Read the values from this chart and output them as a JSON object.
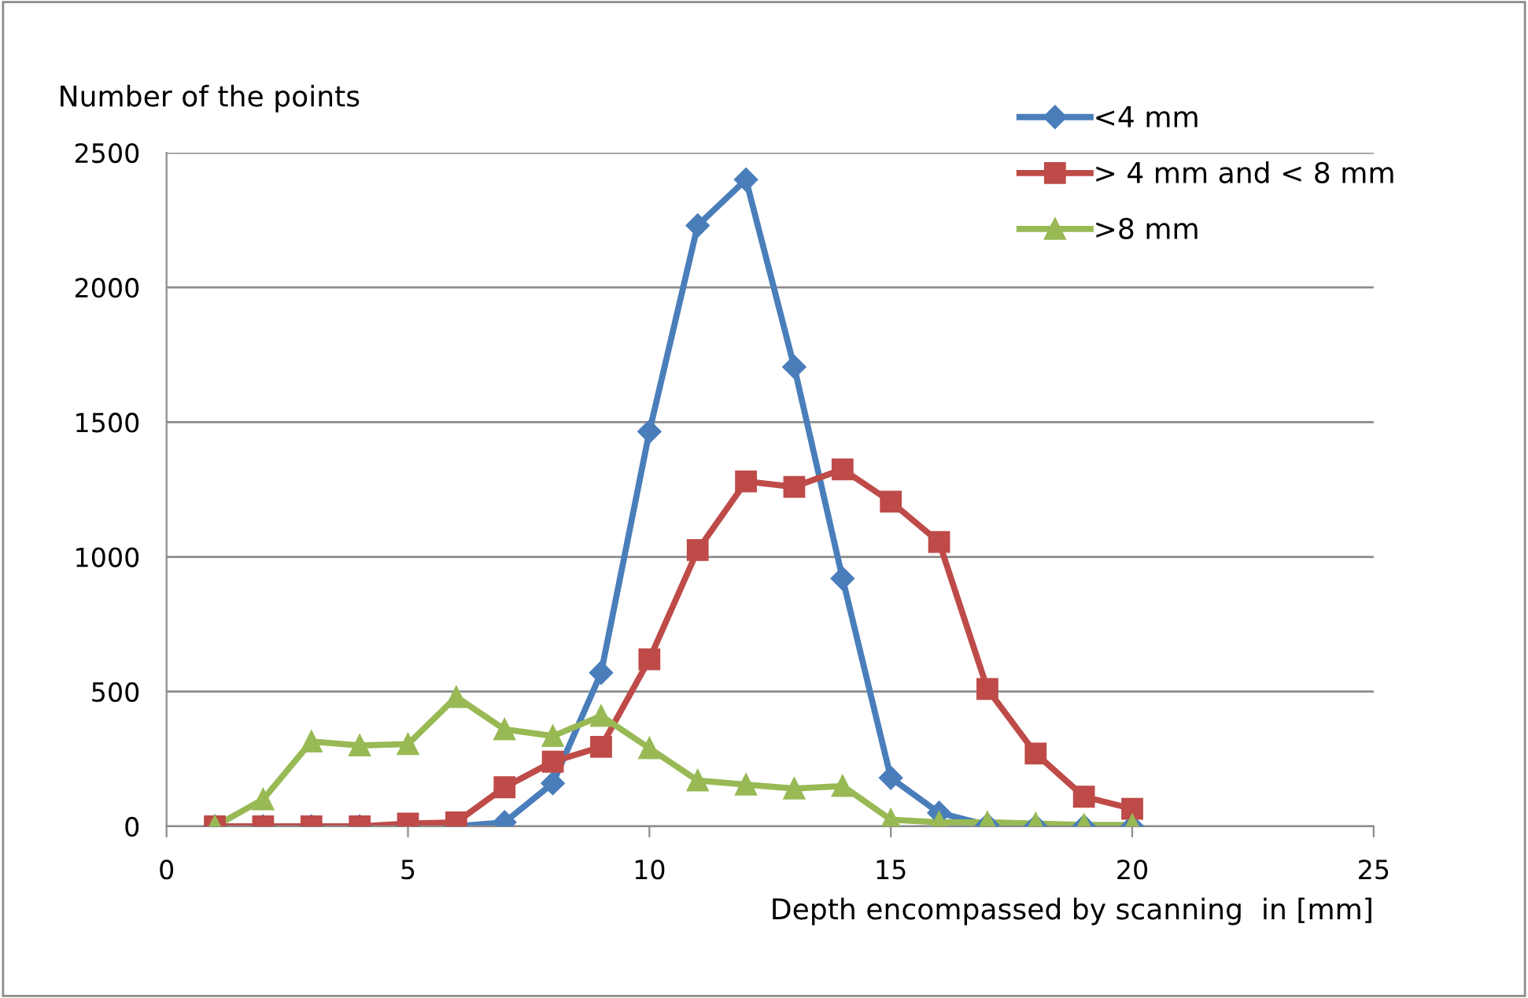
{
  "chart_data": {
    "type": "line",
    "xlabel": "Depth encompassed by scanning  in [mm]",
    "ylabel": "Number of the points",
    "x": [
      1,
      2,
      3,
      4,
      5,
      6,
      7,
      8,
      9,
      10,
      11,
      12,
      13,
      14,
      15,
      16,
      17,
      18,
      19,
      20
    ],
    "series": [
      {
        "name": "<4 mm",
        "color": "#4a7ebb",
        "marker": "diamond",
        "values": [
          0,
          0,
          0,
          0,
          0,
          0,
          15,
          160,
          570,
          1465,
          2230,
          2400,
          1705,
          920,
          180,
          50,
          5,
          0,
          0,
          0
        ]
      },
      {
        "name": "> 4 mm and < 8 mm",
        "color": "#be4b48",
        "marker": "square",
        "values": [
          0,
          0,
          0,
          0,
          10,
          15,
          145,
          240,
          295,
          620,
          1025,
          1280,
          1260,
          1325,
          1205,
          1055,
          510,
          270,
          110,
          65
        ]
      },
      {
        "name": ">8 mm",
        "color": "#98b954",
        "marker": "triangle",
        "values": [
          0,
          100,
          315,
          300,
          305,
          480,
          360,
          335,
          410,
          290,
          170,
          155,
          140,
          150,
          25,
          15,
          15,
          10,
          5,
          5
        ]
      }
    ],
    "xlim": [
      0,
      25
    ],
    "xticks": [
      0,
      5,
      10,
      15,
      20,
      25
    ],
    "ylim": [
      0,
      2500
    ],
    "yticks": [
      0,
      500,
      1000,
      1500,
      2000,
      2500
    ],
    "grid": "y",
    "legend": "top right",
    "line_style": "solid"
  }
}
